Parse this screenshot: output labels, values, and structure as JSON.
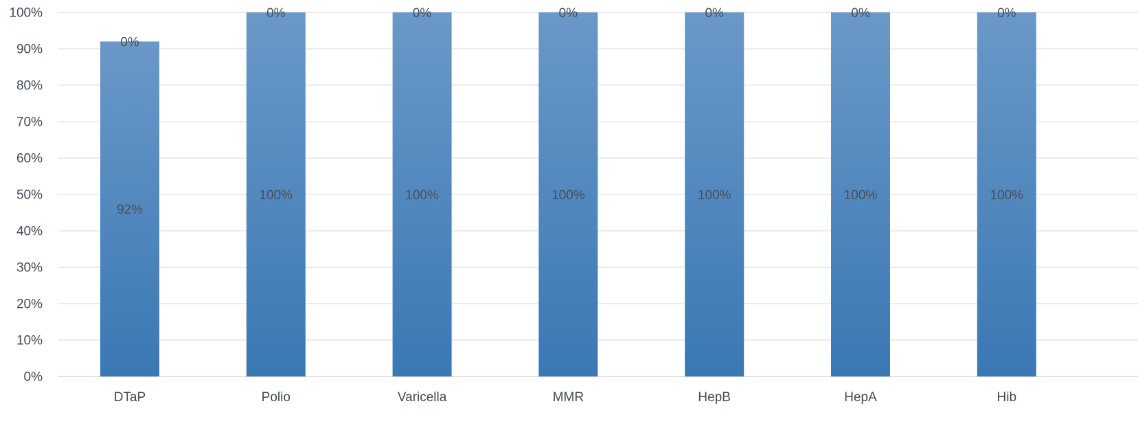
{
  "chart_data": {
    "type": "bar",
    "stacked": true,
    "categories": [
      "DTaP",
      "Polio",
      "Varicella",
      "MMR",
      "HepB",
      "HepA",
      "Hib"
    ],
    "series": [
      {
        "values": [
          0.92,
          1.0,
          1.0,
          1.0,
          1.0,
          1.0,
          1.0
        ],
        "labels": [
          "92%",
          "100%",
          "100%",
          "100%",
          "100%",
          "100%",
          "100%"
        ],
        "color_top": "#6a98c8",
        "color_bottom": "#3a78b4"
      },
      {
        "values": [
          0,
          0,
          0,
          0,
          0,
          0,
          0
        ],
        "labels": [
          "0%",
          "0%",
          "0%",
          "0%",
          "0%",
          "0%",
          "0%"
        ],
        "color_top": "#ed7d31",
        "color_bottom": "#ed7d31"
      }
    ],
    "ylim": [
      0,
      1
    ],
    "yticks": [
      "0%",
      "10%",
      "20%",
      "30%",
      "40%",
      "50%",
      "60%",
      "70%",
      "80%",
      "90%",
      "100%"
    ],
    "grid": true,
    "legend": "none",
    "title": "",
    "xlabel": "",
    "ylabel": ""
  }
}
